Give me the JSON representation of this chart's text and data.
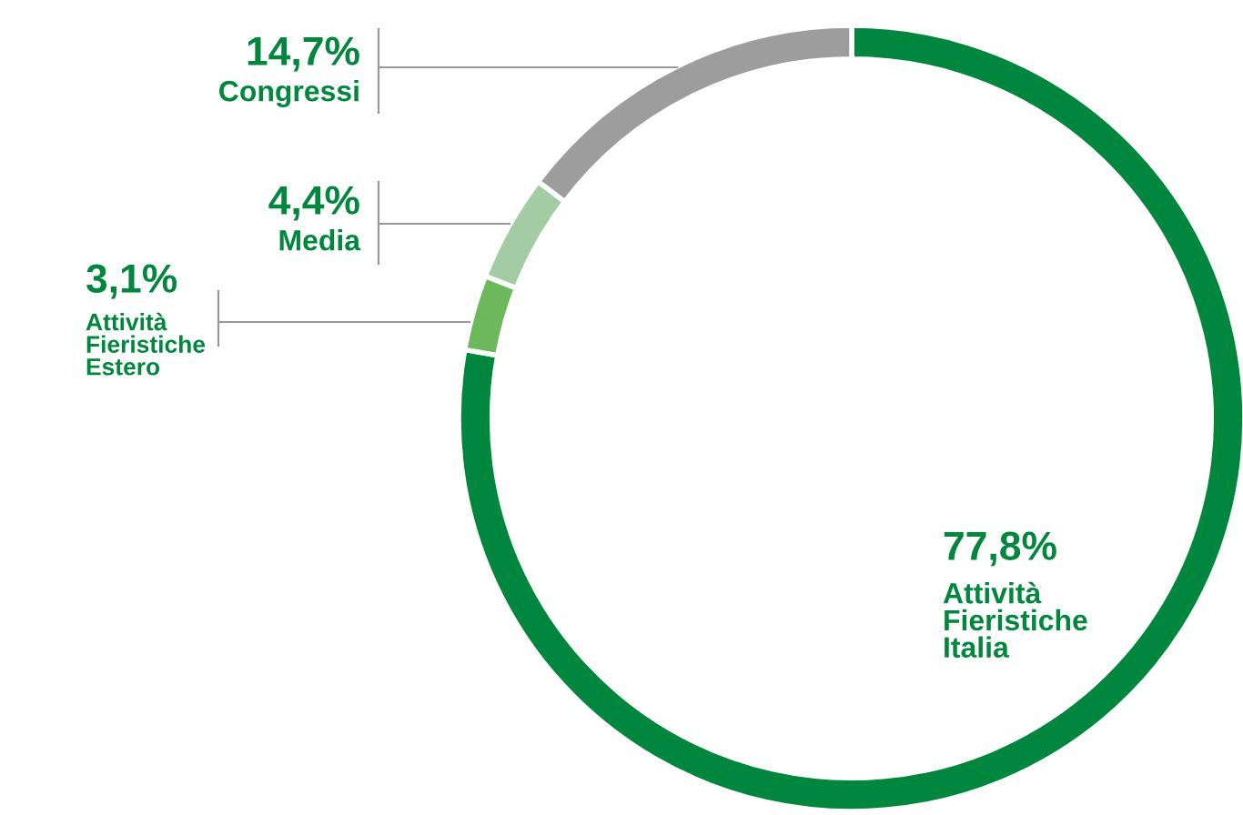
{
  "chart_data": {
    "type": "donut",
    "categories": [
      "Attività\nFieristiche\nItalia",
      "Attività\nFieristiche\nEstero",
      "Media",
      "Congressi"
    ],
    "values": [
      77.8,
      3.1,
      4.4,
      14.7
    ],
    "value_labels": [
      "77,8%",
      "3,1%",
      "4,4%",
      "14,7%"
    ],
    "colors": [
      "#00873d",
      "#6cb85a",
      "#a3cca3",
      "#9d9d9d"
    ],
    "legend": false
  }
}
